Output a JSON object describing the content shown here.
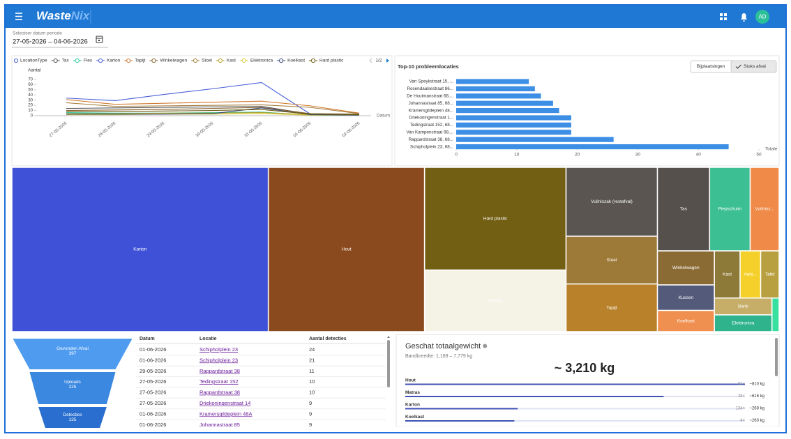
{
  "header": {
    "brand_main": "Waste",
    "brand_accent": "Nix",
    "avatar": "AD"
  },
  "date_filter": {
    "label": "Selecteer datum periode",
    "value": "27-05-2026 – 04-06-2026"
  },
  "line_chart": {
    "type": "line",
    "legend_title": "LocationType",
    "y_label": "Aantal",
    "x_label": "Datum",
    "pager": "1/2",
    "categories": [
      "27-05-2026",
      "28-05-2026",
      "29-05-2026",
      "30-05-2026",
      "31-05-2026",
      "01-06-2026",
      "02-06-2026"
    ],
    "ylim": [
      0,
      70
    ],
    "yticks": [
      0,
      10,
      20,
      30,
      40,
      50,
      60,
      70
    ],
    "grid": false,
    "series": [
      {
        "name": "Tas",
        "color": "#555555",
        "values": [
          14,
          15,
          16,
          17,
          18,
          3,
          2
        ]
      },
      {
        "name": "Fles",
        "color": "#30c9a0",
        "values": [
          6,
          5,
          5,
          6,
          7,
          1,
          1
        ]
      },
      {
        "name": "Karton",
        "color": "#4a5fd8",
        "values": [
          34,
          29,
          41,
          52,
          64,
          3,
          2
        ]
      },
      {
        "name": "Tapijt",
        "color": "#d07a30",
        "values": [
          31,
          22,
          24,
          26,
          28,
          19,
          5
        ]
      },
      {
        "name": "Winkelwagen",
        "color": "#8a6530",
        "values": [
          10,
          11,
          12,
          14,
          16,
          4,
          3
        ]
      },
      {
        "name": "Stoel",
        "color": "#a57f3d",
        "values": [
          25,
          18,
          19,
          20,
          21,
          16,
          4
        ]
      },
      {
        "name": "Kast",
        "color": "#b9a02a",
        "values": [
          4,
          4,
          5,
          5,
          6,
          2,
          1
        ]
      },
      {
        "name": "Elektronica",
        "color": "#d8cc40",
        "values": [
          2,
          2,
          3,
          3,
          4,
          1,
          1
        ]
      },
      {
        "name": "Koelkast",
        "color": "#3a4a7a",
        "values": [
          3,
          3,
          3,
          4,
          15,
          2,
          1
        ]
      },
      {
        "name": "Hard plastic",
        "color": "#6b5a10",
        "values": [
          8,
          8,
          9,
          10,
          12,
          3,
          2
        ]
      }
    ]
  },
  "bar_chart": {
    "type": "bar",
    "title": "Top-10 probleemlocaties",
    "toggles": [
      "Bijplaatsingen",
      "Stuks afval"
    ],
    "active_toggle": 1,
    "categories": [
      "Van Speykstraat 15, ...",
      "Rosendaalsestraat 86...",
      "De Houtmanstraat 68,...",
      "Johannastraat 85, 68...",
      "Kramersgildeplein 48...",
      "Driekoningenstraat 1...",
      "Tedingstraat 152, 68...",
      "Van Kampenstraat 98,...",
      "Rappardstraat 38, 68...",
      "Schipholplein 23, 68..."
    ],
    "values": [
      12,
      13,
      14,
      16,
      17,
      19,
      19,
      19,
      26,
      45
    ],
    "color": "#3d8fe6",
    "x_label": "Totale",
    "xlim": [
      0,
      50
    ],
    "xticks": [
      0,
      10,
      20,
      30,
      40,
      50
    ],
    "grid": false
  },
  "treemap": {
    "type": "treemap",
    "labels": [
      "Karton",
      "Hout",
      "Hard plastic",
      "Matras",
      "Vuilniszak (restafval)",
      "Stoel",
      "Tapijt",
      "Tas",
      "Piepschuim",
      "Vuilnisz...",
      "Winkelwagen",
      "Kussen",
      "Koelkast",
      "Kast",
      "Auto...",
      "Tafel",
      "Bank",
      "Elektronica",
      null
    ],
    "values": [
      87,
      53,
      30,
      18,
      13,
      9,
      9,
      9,
      7,
      5,
      4,
      3,
      2.5,
      2.5,
      2,
      1.8,
      2,
      2,
      0.5
    ],
    "colors": [
      "#3f51d6",
      "#8b4a1e",
      "#735f14",
      "#f5f2e6",
      "#5a5550",
      "#9e7a38",
      "#b9822a",
      "#55504c",
      "#3dbf94",
      "#ef8a48",
      "#8a6b34",
      "#545a7a",
      "#f09050",
      "#8d7a38",
      "#f5d02a",
      "#b8a040",
      "#c6ad68",
      "#2fb38c",
      "#38e0a0"
    ]
  },
  "funnel": {
    "type": "funnel",
    "stages": [
      "Gevonden Afval",
      "Uploads",
      "Detecties"
    ],
    "values": [
      397,
      225,
      135
    ],
    "colors": [
      "#4f9bf0",
      "#3a88e0",
      "#2a6fcf"
    ]
  },
  "table": {
    "headers": [
      "Datum",
      "Locatie",
      "Aantal detecties"
    ],
    "rows": [
      [
        "01-06-2026",
        "Schipholplein 23",
        "24"
      ],
      [
        "01-06-2026",
        "Schipholplein 23",
        "21"
      ],
      [
        "29-05-2026",
        "Rappardstraat 38",
        "11"
      ],
      [
        "27-05-2026",
        "Tedingstraat 152",
        "10"
      ],
      [
        "27-05-2026",
        "Rappardstraat 38",
        "10"
      ],
      [
        "27-05-2026",
        "Driekoningenstraat 14",
        "9"
      ],
      [
        "01-06-2026",
        "Kramersgildeplein 48A",
        "9"
      ],
      [
        "01-06-2026",
        "Johannastraat 85",
        "9"
      ]
    ]
  },
  "weight": {
    "title": "Geschat totaalgewicht",
    "subtitle": "Bandbreedte: 1,189 – 7,779 kg",
    "total": "~ 3,210 kg",
    "items": [
      {
        "name": "Hout",
        "count": "81×",
        "weight": "~810 kg",
        "kg": 810
      },
      {
        "name": "Matras",
        "count": "28×",
        "weight": "~616 kg",
        "kg": 616
      },
      {
        "name": "Karton",
        "count": "134×",
        "weight": "~268 kg",
        "kg": 268
      },
      {
        "name": "Koelkast",
        "count": "4×",
        "weight": "~260 kg",
        "kg": 260
      }
    ]
  }
}
